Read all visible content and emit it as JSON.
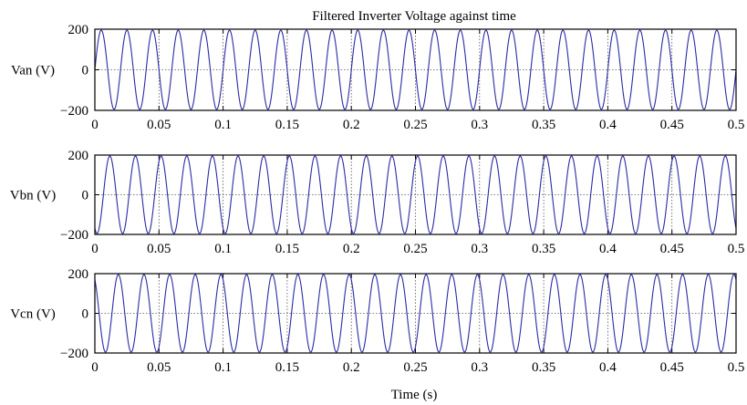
{
  "title": "Filtered Inverter  Voltage against time",
  "xlabel": "Time (s)",
  "colors": {
    "trace": "#2b2ba6",
    "grid": "#555555",
    "axes": "#000000"
  },
  "chart_data": [
    {
      "type": "line",
      "title": "Filtered Inverter  Voltage against time",
      "ylabel": "Van (V)",
      "xlabel": "",
      "xlim": [
        0,
        0.5
      ],
      "ylim": [
        -200,
        200
      ],
      "xticks": [
        "0",
        "0.05",
        "0.1",
        "0.15",
        "0.2",
        "0.25",
        "0.3",
        "0.35",
        "0.4",
        "0.45",
        "0.5"
      ],
      "yticks": [
        "200",
        "0",
        "−200"
      ],
      "grid": true,
      "series": [
        {
          "frequency_hz": 50,
          "amplitude": 195,
          "phase_deg": 0
        }
      ]
    },
    {
      "type": "line",
      "title": "",
      "ylabel": "Vbn (V)",
      "xlabel": "",
      "xlim": [
        0,
        0.5
      ],
      "ylim": [
        -200,
        200
      ],
      "xticks": [
        "0",
        "0.05",
        "0.1",
        "0.15",
        "0.2",
        "0.25",
        "0.3",
        "0.35",
        "0.4",
        "0.45",
        "0.5"
      ],
      "yticks": [
        "200",
        "0",
        "−200"
      ],
      "grid": true,
      "series": [
        {
          "frequency_hz": 50,
          "amplitude": 195,
          "phase_deg": -120
        }
      ]
    },
    {
      "type": "line",
      "title": "",
      "ylabel": "Vcn (V)",
      "xlabel": "Time (s)",
      "xlim": [
        0,
        0.5
      ],
      "ylim": [
        -200,
        200
      ],
      "xticks": [
        "0",
        "0.05",
        "0.1",
        "0.15",
        "0.2",
        "0.25",
        "0.3",
        "0.35",
        "0.4",
        "0.45",
        "0.5"
      ],
      "yticks": [
        "200",
        "0",
        "−200"
      ],
      "grid": true,
      "series": [
        {
          "frequency_hz": 50,
          "amplitude": 195,
          "phase_deg": 120
        }
      ]
    }
  ]
}
